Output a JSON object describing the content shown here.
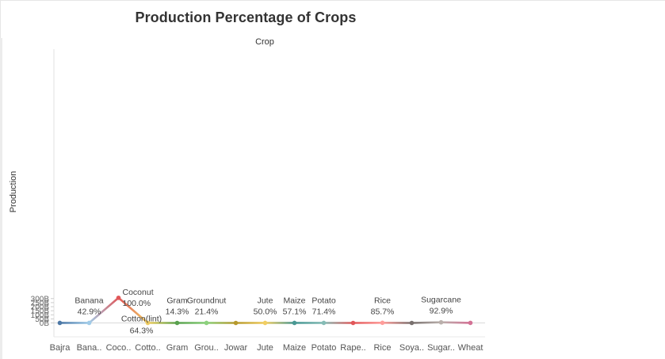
{
  "title": "Production Percentage of Crops",
  "column_header": "Crop",
  "chart_data": {
    "type": "line",
    "title": "Production Percentage of Crops",
    "xlabel": "Crop",
    "ylabel": "Production",
    "ylim": [
      0,
      330
    ],
    "y_ticks": [
      0,
      50,
      100,
      150,
      200,
      250,
      300
    ],
    "y_tick_labels": [
      "0B",
      "50B",
      "100B",
      "150B",
      "200B",
      "250B",
      "300B"
    ],
    "categories": [
      "Bajra",
      "Bana..",
      "Coco..",
      "Cotto..",
      "Gram",
      "Grou..",
      "Jowar",
      "Jute",
      "Maize",
      "Potato",
      "Rape..",
      "Rice",
      "Soya..",
      "Sugar..",
      "Wheat"
    ],
    "values": [
      0.2,
      0.3,
      309.5,
      0.2,
      0.1,
      0.3,
      0.1,
      0.2,
      0.4,
      0.5,
      0.1,
      1.7,
      0.1,
      7.5,
      0.9
    ],
    "unit": "B",
    "grid": false,
    "colors": [
      "#4e79a7",
      "#a0cbe8",
      "#e15759",
      "#f1ce63",
      "#59a14f",
      "#8cd17d",
      "#b6992d",
      "#f1ce63",
      "#499894",
      "#86bcb6",
      "#e15759",
      "#ff9d9a",
      "#79706e",
      "#bab0ac",
      "#d37295"
    ],
    "annotations": [
      {
        "category": "Bana..",
        "name": "Banana",
        "pct": "42.9%",
        "side": "above"
      },
      {
        "category": "Coco..",
        "name": "Coconut",
        "pct": "100.0%",
        "side": "right"
      },
      {
        "category": "Cotto..",
        "name": "Cotton(lint)",
        "pct": "64.3%",
        "side": "below"
      },
      {
        "category": "Gram",
        "name": "Gram",
        "pct": "14.3%",
        "side": "above"
      },
      {
        "category": "Grou..",
        "name": "Groundnut",
        "pct": "21.4%",
        "side": "above"
      },
      {
        "category": "Jute",
        "name": "Jute",
        "pct": "50.0%",
        "side": "above"
      },
      {
        "category": "Maize",
        "name": "Maize",
        "pct": "57.1%",
        "side": "above"
      },
      {
        "category": "Potato",
        "name": "Potato",
        "pct": "71.4%",
        "side": "above"
      },
      {
        "category": "Rice",
        "name": "Rice",
        "pct": "85.7%",
        "side": "above"
      },
      {
        "category": "Sugar..",
        "name": "Sugarcane",
        "pct": "92.9%",
        "side": "above"
      }
    ]
  }
}
